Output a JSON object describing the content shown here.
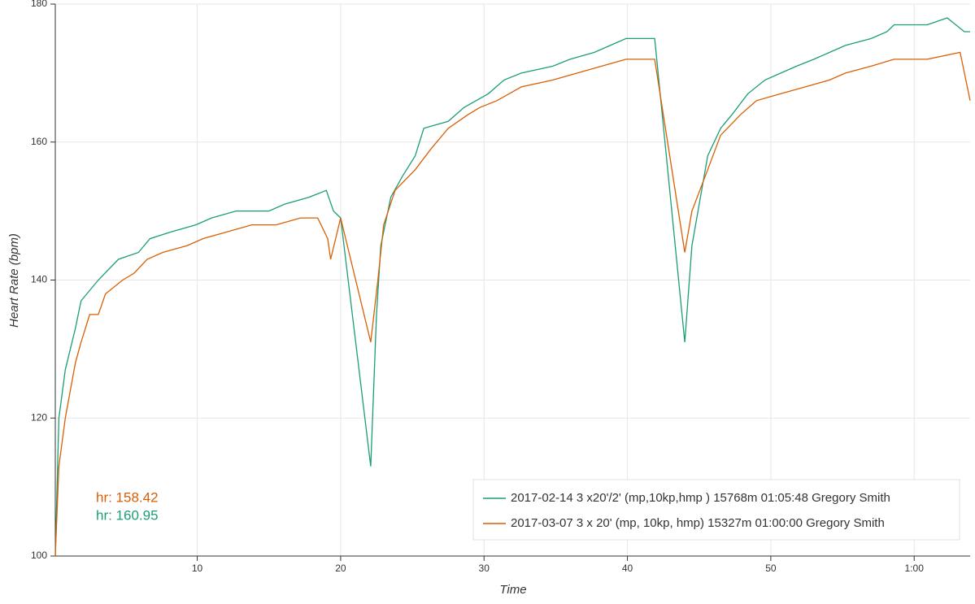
{
  "chart_data": {
    "type": "line",
    "xlabel": "Time",
    "ylabel": "Heart Rate (bpm)",
    "xlim": [
      0.1,
      63.9
    ],
    "ylim": [
      100,
      180
    ],
    "xticks": [
      10,
      20,
      30,
      40,
      50,
      {
        "value": 60,
        "label": "1:00"
      }
    ],
    "yticks": [
      100,
      120,
      140,
      160,
      180
    ],
    "grid": true,
    "legend": "lower right",
    "annotations": [
      {
        "text": "hr: 158.42",
        "color": "#d95f02"
      },
      {
        "text": "hr: 160.95",
        "color": "#1b9e77"
      }
    ],
    "series": [
      {
        "name": "2017-02-14 3 x20'/2' (mp,10kp,hmp ) 15768m 01:05:48 Gregory Smith",
        "color": "#1b9e77",
        "x": [
          0.1,
          0.35,
          0.8,
          1.5,
          1.9,
          3.1,
          4.5,
          5.9,
          6.7,
          8.2,
          9.9,
          11,
          12.7,
          15,
          16.1,
          17.8,
          19,
          19.5,
          20,
          22.1,
          22.5,
          22.8,
          23.5,
          24.3,
          25.2,
          25.8,
          27.5,
          28.6,
          30.3,
          31.4,
          32.6,
          34.8,
          36,
          37.7,
          38.8,
          39.9,
          41.9,
          44,
          44.5,
          45.6,
          46.5,
          47.3,
          48.4,
          49.6,
          50.7,
          51.8,
          53,
          54.1,
          55.2,
          57,
          58.1,
          58.6,
          60.9,
          62.3,
          63.5,
          63.9
        ],
        "values": [
          100,
          120,
          127,
          133,
          137,
          140,
          143,
          144,
          146,
          147,
          148,
          149,
          150,
          150,
          151,
          152,
          153,
          150,
          149,
          113,
          135,
          145,
          152,
          155,
          158,
          162,
          163,
          165,
          167,
          169,
          170,
          171,
          172,
          173,
          174,
          175,
          175,
          131,
          145,
          158,
          162,
          164,
          167,
          169,
          170,
          171,
          172,
          173,
          174,
          175,
          176,
          177,
          177,
          178,
          176,
          176
        ]
      },
      {
        "name": "2017-03-07 3 x 20' (mp, 10kp, hmp) 15327m 01:00:00 Gregory Smith",
        "color": "#d95f02",
        "x": [
          0.1,
          0.35,
          0.8,
          1.5,
          1.9,
          2.5,
          3.1,
          3.6,
          4.8,
          5.6,
          6.5,
          7.6,
          9.3,
          10.4,
          12.1,
          13.8,
          15.5,
          17.2,
          18.4,
          19.1,
          19.3,
          20,
          22.1,
          22.6,
          23,
          23.8,
          25.2,
          26.3,
          27.5,
          28.9,
          29.7,
          30.9,
          32.6,
          34.8,
          36.5,
          38.2,
          39.9,
          41.9,
          44,
          44.5,
          45.6,
          46.5,
          47.9,
          49,
          50.7,
          52.4,
          54.1,
          55.2,
          57,
          58.6,
          60.9,
          63.2,
          63.9
        ],
        "values": [
          100,
          113,
          120,
          128,
          131,
          135,
          135,
          138,
          140,
          141,
          143,
          144,
          145,
          146,
          147,
          148,
          148,
          149,
          149,
          146,
          143,
          149,
          131,
          140,
          148,
          153,
          156,
          159,
          162,
          164,
          165,
          166,
          168,
          169,
          170,
          171,
          172,
          172,
          144,
          150,
          156,
          161,
          164,
          166,
          167,
          168,
          169,
          170,
          171,
          172,
          172,
          173,
          166
        ]
      }
    ]
  }
}
